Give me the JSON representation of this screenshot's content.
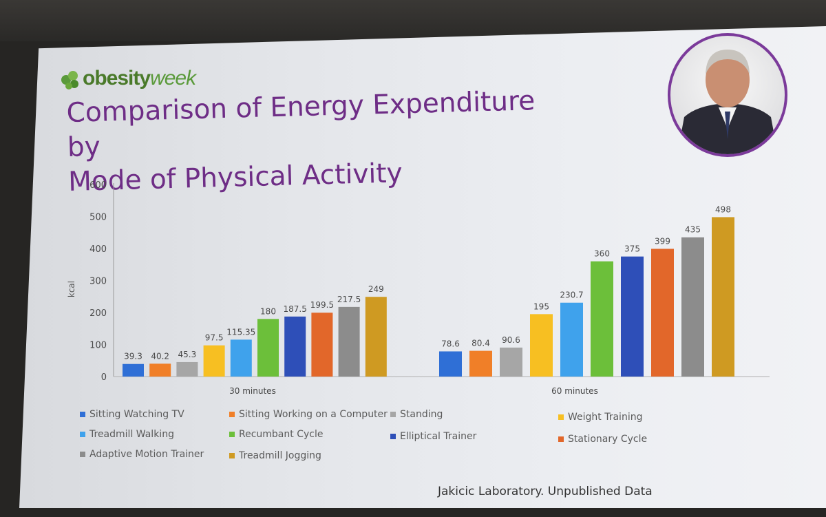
{
  "slide": {
    "logo_prefix": "obesity",
    "logo_suffix": "week",
    "title_line1": "Comparison of Energy Expenditure by",
    "title_line2": "Mode of Physical Activity",
    "source": "Jakicic Laboratory. Unpublished Data"
  },
  "colors": {
    "title": "#6e2d86",
    "portrait_border": "#7b3a9a",
    "logo_green": "#5a9a3a"
  },
  "chart_data": {
    "type": "bar",
    "ylabel": "kcal",
    "xlabel": "",
    "ylim": [
      0,
      600
    ],
    "yticks": [
      0,
      100,
      200,
      300,
      400,
      500,
      600
    ],
    "grid": false,
    "legend_position": "bottom",
    "categories": [
      "30 minutes",
      "60 minutes"
    ],
    "series": [
      {
        "name": "Sitting Watching TV",
        "color": "#2f6fd6",
        "values": [
          39.3,
          78.6
        ],
        "labels": [
          "39.3",
          "78.6"
        ]
      },
      {
        "name": "Sitting Working on a Computer",
        "color": "#f07f28",
        "values": [
          40.2,
          80.4
        ],
        "labels": [
          "40.2",
          "80.4"
        ]
      },
      {
        "name": "Standing",
        "color": "#a6a6a6",
        "values": [
          45.3,
          90.6
        ],
        "labels": [
          "45.3",
          "90.6"
        ]
      },
      {
        "name": "Weight Training",
        "color": "#f7bf22",
        "values": [
          97.5,
          195
        ],
        "labels": [
          "97.5",
          "195"
        ]
      },
      {
        "name": "Treadmill Walking",
        "color": "#3fa2ec",
        "values": [
          115.35,
          230.7
        ],
        "labels": [
          "115.35",
          "230.7"
        ]
      },
      {
        "name": "Recumbant Cycle",
        "color": "#6cbf3a",
        "values": [
          180,
          360
        ],
        "labels": [
          "180",
          "360"
        ]
      },
      {
        "name": "Elliptical Trainer",
        "color": "#2e4fb8",
        "values": [
          187.5,
          375
        ],
        "labels": [
          "187.5",
          "375"
        ]
      },
      {
        "name": "Stationary Cycle",
        "color": "#e2672a",
        "values": [
          199.5,
          399
        ],
        "labels": [
          "199.5",
          "399"
        ]
      },
      {
        "name": "Adaptive Motion Trainer",
        "color": "#8c8c8c",
        "values": [
          217.5,
          435
        ],
        "labels": [
          "217.5",
          "435"
        ]
      },
      {
        "name": "Treadmill Jogging",
        "color": "#cf9a22",
        "values": [
          249,
          498
        ],
        "labels": [
          "249",
          "498"
        ]
      }
    ]
  }
}
